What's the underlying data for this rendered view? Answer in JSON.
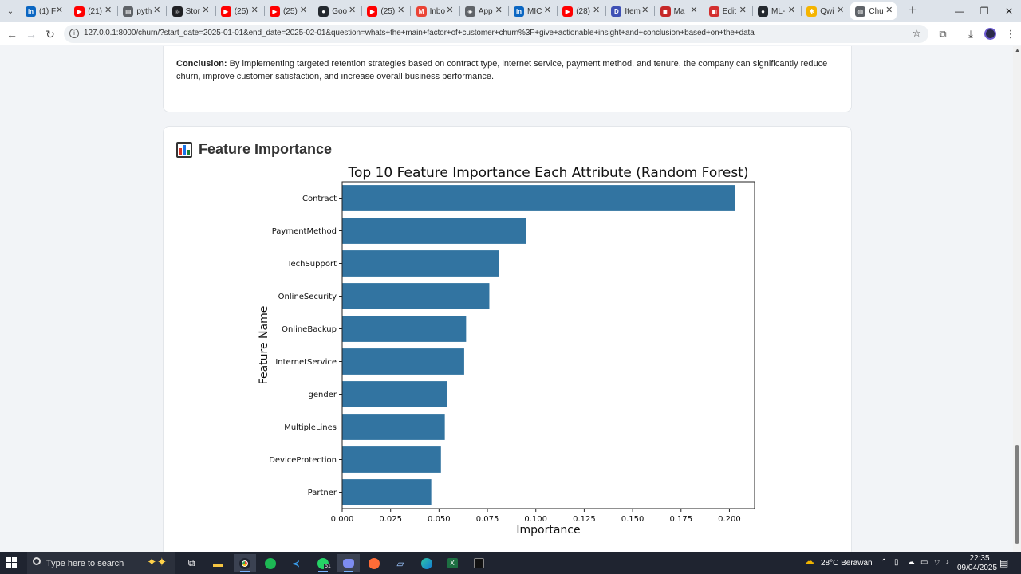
{
  "browser": {
    "tabs": [
      {
        "title": "(1) F",
        "color": "#0a66c2",
        "glyph": "in"
      },
      {
        "title": "(21)",
        "color": "#ff0000",
        "glyph": "▶"
      },
      {
        "title": "pyth",
        "color": "#5f6368",
        "glyph": "▤"
      },
      {
        "title": "Stor",
        "color": "#202124",
        "glyph": "◎"
      },
      {
        "title": "(25)",
        "color": "#ff0000",
        "glyph": "▶"
      },
      {
        "title": "(25)",
        "color": "#ff0000",
        "glyph": "▶"
      },
      {
        "title": "Goo",
        "color": "#24292f",
        "glyph": "●"
      },
      {
        "title": "(25)",
        "color": "#ff0000",
        "glyph": "▶"
      },
      {
        "title": "Inbo",
        "color": "#ea4335",
        "glyph": "M"
      },
      {
        "title": "App",
        "color": "#5f6368",
        "glyph": "◈"
      },
      {
        "title": "MIC",
        "color": "#0a66c2",
        "glyph": "in"
      },
      {
        "title": "(28)",
        "color": "#ff0000",
        "glyph": "▶"
      },
      {
        "title": "Item",
        "color": "#3f51b5",
        "glyph": "D"
      },
      {
        "title": "Ma",
        "color": "#c62828",
        "glyph": "▣"
      },
      {
        "title": "Edit",
        "color": "#d32f2f",
        "glyph": "▣"
      },
      {
        "title": "ML-",
        "color": "#24292f",
        "glyph": "●"
      },
      {
        "title": "Qwi",
        "color": "#f5b400",
        "glyph": "✱"
      },
      {
        "title": "Chu",
        "color": "#5f6368",
        "glyph": "◍",
        "active": true
      }
    ],
    "address": "127.0.0.1:8000/churn/?start_date=2025-01-01&end_date=2025-02-01&question=whats+the+main+factor+of+customer+churn%3F+give+actionable+insight+and+conclusion+based+on+the+data"
  },
  "conclusion": {
    "label": "Conclusion:",
    "text": " By implementing targeted retention strategies based on contract type, internet service, payment method, and tenure, the company can significantly reduce churn, improve customer satisfaction, and increase overall business performance."
  },
  "feature_section": {
    "title": "Feature Importance"
  },
  "chart_data": {
    "type": "bar",
    "orientation": "horizontal",
    "title": "Top 10 Feature Importance Each Attribute (Random Forest)",
    "xlabel": "Importance",
    "ylabel": "Feature Name",
    "categories": [
      "Contract",
      "PaymentMethod",
      "TechSupport",
      "OnlineSecurity",
      "OnlineBackup",
      "InternetService",
      "gender",
      "MultipleLines",
      "DeviceProtection",
      "Partner"
    ],
    "values": [
      0.203,
      0.095,
      0.081,
      0.076,
      0.064,
      0.063,
      0.054,
      0.053,
      0.051,
      0.046
    ],
    "xlim": [
      0,
      0.213
    ],
    "xticks": [
      "0.000",
      "0.025",
      "0.050",
      "0.075",
      "0.100",
      "0.125",
      "0.150",
      "0.175",
      "0.200"
    ],
    "bar_color": "#3274a1",
    "grid": false
  },
  "taskbar": {
    "search_placeholder": "Type here to search",
    "weather": "28°C  Berawan",
    "time": "22:35",
    "date": "09/04/2025",
    "whatsapp_badge": "51"
  }
}
